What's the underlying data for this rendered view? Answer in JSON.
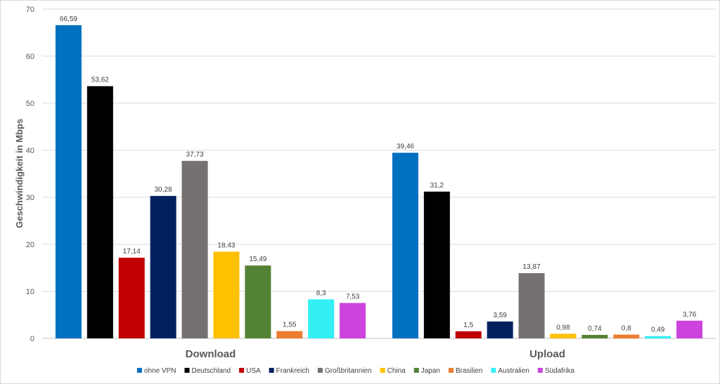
{
  "chart_data": {
    "type": "bar",
    "title": "",
    "xlabel": "",
    "ylabel": "Geschwindigkeit in Mbps",
    "ylim": [
      0,
      70
    ],
    "yticks": [
      0,
      10,
      20,
      30,
      40,
      50,
      60,
      70
    ],
    "grid": true,
    "legend_position": "bottom",
    "categories": [
      "Download",
      "Upload"
    ],
    "series": [
      {
        "name": "ohne VPN",
        "color": "#0070C0",
        "values": [
          66.59,
          39.46
        ],
        "labels": [
          "66,59",
          "39,46"
        ]
      },
      {
        "name": "Deutschland",
        "color": "#000000",
        "values": [
          53.62,
          31.2
        ],
        "labels": [
          "53,62",
          "31,2"
        ]
      },
      {
        "name": "USA",
        "color": "#C00000",
        "values": [
          17.14,
          1.5
        ],
        "labels": [
          "17,14",
          "1,5"
        ]
      },
      {
        "name": "Frankreich",
        "color": "#002060",
        "values": [
          30.28,
          3.59
        ],
        "labels": [
          "30,28",
          "3,59"
        ]
      },
      {
        "name": "Großbritannien",
        "color": "#767171",
        "values": [
          37.73,
          13.87
        ],
        "labels": [
          "37,73",
          "13,87"
        ]
      },
      {
        "name": "China",
        "color": "#FFC000",
        "values": [
          18.43,
          0.98
        ],
        "labels": [
          "18,43",
          "0,98"
        ]
      },
      {
        "name": "Japan",
        "color": "#548235",
        "values": [
          15.49,
          0.74
        ],
        "labels": [
          "15,49",
          "0,74"
        ]
      },
      {
        "name": "Brasilien",
        "color": "#ED7D31",
        "values": [
          1.55,
          0.8
        ],
        "labels": [
          "1,55",
          "0,8"
        ]
      },
      {
        "name": "Australien",
        "color": "#33F0F5",
        "values": [
          8.3,
          0.49
        ],
        "labels": [
          "8,3",
          "0,49"
        ]
      },
      {
        "name": "Südafrika",
        "color": "#CC44DD",
        "values": [
          7.53,
          3.76
        ],
        "labels": [
          "7,53",
          "3,76"
        ]
      }
    ]
  }
}
